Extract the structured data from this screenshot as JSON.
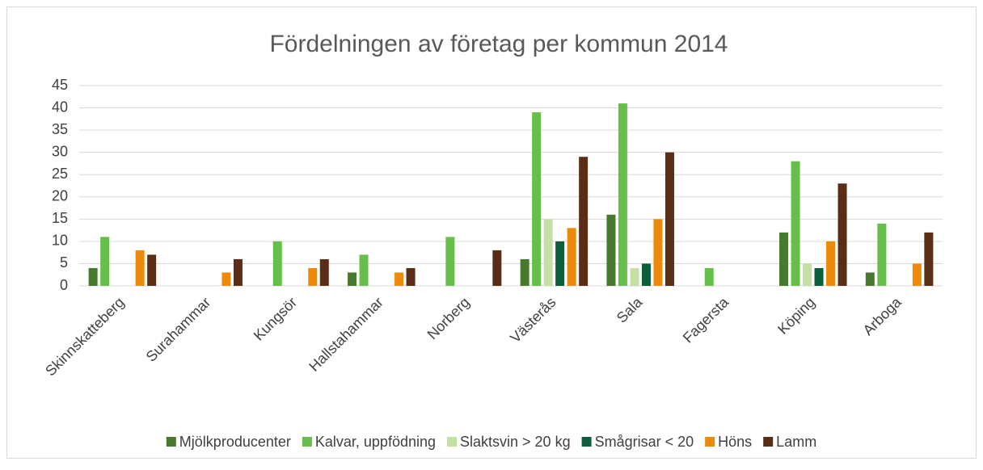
{
  "chart_data": {
    "type": "bar",
    "title": "Fördelningen av företag per kommun 2014",
    "categories": [
      "Skinnskatteberg",
      "Surahammar",
      "Kungsör",
      "Hallstahammar",
      "Norberg",
      "Västerås",
      "Sala",
      "Fagersta",
      "Köping",
      "Arboga"
    ],
    "series": [
      {
        "name": "Mjölkproducenter",
        "color": "#477a2c",
        "values": [
          4,
          0,
          0,
          3,
          0,
          6,
          16,
          0,
          12,
          3
        ]
      },
      {
        "name": "Kalvar, uppfödning",
        "color": "#66bf4a",
        "values": [
          11,
          0,
          10,
          7,
          11,
          39,
          41,
          4,
          28,
          14
        ]
      },
      {
        "name": "Slaktsvin > 20 kg",
        "color": "#c5e0a5",
        "values": [
          0,
          0,
          0,
          0,
          0,
          15,
          4,
          0,
          5,
          0
        ]
      },
      {
        "name": "Smågrisar < 20",
        "color": "#0c5e3c",
        "values": [
          0,
          0,
          0,
          0,
          0,
          10,
          5,
          0,
          4,
          0
        ]
      },
      {
        "name": "Höns",
        "color": "#ec8a0c",
        "values": [
          8,
          3,
          4,
          3,
          0,
          13,
          15,
          0,
          10,
          5
        ]
      },
      {
        "name": "Lamm",
        "color": "#5a2d17",
        "values": [
          7,
          6,
          6,
          4,
          8,
          29,
          30,
          0,
          23,
          12
        ]
      }
    ],
    "ylim": [
      0,
      45
    ],
    "yticks": [
      0,
      5,
      10,
      15,
      20,
      25,
      30,
      35,
      40,
      45
    ],
    "grid": true,
    "legend": "bottom"
  }
}
